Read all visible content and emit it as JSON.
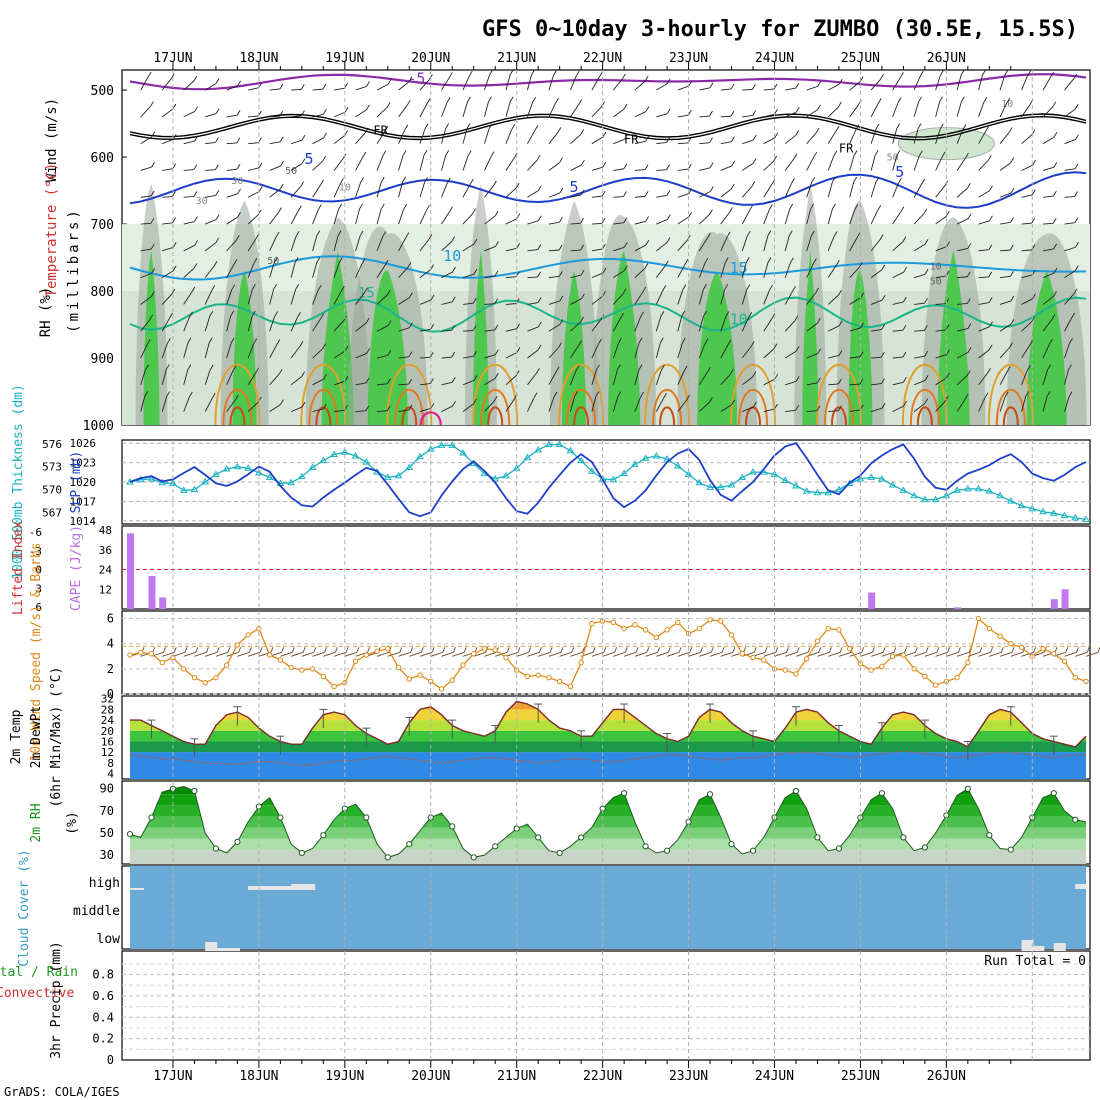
{
  "title": "GFS 0~10day 3-hourly for ZUMBO (30.5E, 15.5S)",
  "credit": "GrADS: COLA/IGES",
  "dates": [
    "17JUN",
    "18JUN",
    "19JUN",
    "20JUN",
    "21JUN",
    "22JUN",
    "23JUN",
    "24JUN",
    "25JUN",
    "26JUN"
  ],
  "colors": {
    "rh_green": "#2bc82b",
    "rh_grey": "#9aa59a",
    "rh_light": "#e3efe3",
    "slp": "#1c3ec8",
    "thickness": "#1ab2c0",
    "cape": "#c078ee",
    "lifted_ref": "#e02020",
    "wind_speed": "#e08a1a",
    "barbs": "#6a4a2a",
    "temp_line": "#7a2a2a",
    "dewpt": "#b05a4a",
    "cloud_bg": "#6aaad6",
    "cloud_patch": "#e6e6e6"
  },
  "panels": {
    "upper": {
      "ylabel_rh": "RH (%)",
      "ylabel_temp": "Temperature (°C)",
      "ylabel_wind": "Wind (m/s)",
      "ylabel_p": "(millibars)",
      "pressure_ticks": [
        "500",
        "600",
        "700",
        "800",
        "900",
        "1000"
      ],
      "contour_labels": [
        "-5",
        "FR",
        "FR",
        "FR",
        "5",
        "5",
        "5",
        "10",
        "10",
        "15",
        "15",
        "10",
        "50",
        "50",
        "50",
        "30",
        "30",
        "10",
        "10",
        "50"
      ]
    },
    "slp": {
      "ylabel_left": "1000-500mb Thickness (dm)",
      "ylabel_right": "SLP (mb)",
      "thickness_ticks": [
        "576",
        "573",
        "570",
        "567"
      ],
      "slp_ticks": [
        "1026",
        "1023",
        "1020",
        "1017",
        "1014"
      ]
    },
    "cape": {
      "ylabel_li": "Lifted Index",
      "ylabel_cape": "CAPE (J/kg)",
      "li_ticks": [
        "-6",
        "-3",
        "0",
        "3",
        "6"
      ],
      "cape_ticks": [
        "48",
        "36",
        "24",
        "12"
      ]
    },
    "wind": {
      "ylabel": "10m Wind Speed (m/s) & Barbs",
      "ticks": [
        "6",
        "4",
        "2",
        "0"
      ]
    },
    "temp": {
      "ylabel_a": "2m Temp",
      "ylabel_b": "2m DewPt",
      "ylabel_c": "(6hr Min/Max) (°C)",
      "ticks": [
        "32",
        "28",
        "24",
        "20",
        "16",
        "12",
        "8",
        "4"
      ]
    },
    "rh": {
      "ylabel_a": "2m RH",
      "ylabel_b": "(%)",
      "ticks": [
        "90",
        "70",
        "50",
        "30"
      ]
    },
    "cloud": {
      "ylabel": "Cloud Cover (%)",
      "levels": [
        "high",
        "middle",
        "low"
      ]
    },
    "precip": {
      "ylabel_a": "Total / Rain",
      "ylabel_b": "Convective",
      "ylabel_c": "3hr Precip (mm)",
      "run_total": "Run Total = 0",
      "ticks": [
        "0.8",
        "0.6",
        "0.4",
        "0.2",
        "0"
      ]
    }
  },
  "chart_data": [
    {
      "type": "line",
      "name": "Sea Level Pressure",
      "unit": "mb",
      "ylim": [
        1014,
        1026
      ],
      "x_start": "16JUN 12Z",
      "x_step_hours": 3,
      "values": [
        1020.0,
        1020.6,
        1020.9,
        1020.1,
        1020.4,
        1021.4,
        1022.3,
        1021.1,
        1019.8,
        1019.4,
        1020.1,
        1021.2,
        1022.4,
        1021.6,
        1019.4,
        1017.6,
        1016.4,
        1016.2,
        1017.6,
        1018.8,
        1019.9,
        1021.1,
        1022.2,
        1021.7,
        1019.6,
        1017.4,
        1015.3,
        1014.7,
        1015.3,
        1017.9,
        1020.1,
        1022.0,
        1023.2,
        1021.7,
        1019.9,
        1017.5,
        1015.5,
        1015.1,
        1016.8,
        1019.1,
        1021.1,
        1023.0,
        1024.3,
        1023.1,
        1020.4,
        1017.5,
        1016.1,
        1017.1,
        1018.7,
        1021.0,
        1023.1,
        1024.4,
        1025.1,
        1023.4,
        1020.3,
        1018.0,
        1017.1,
        1018.6,
        1020.0,
        1022.0,
        1024.1,
        1025.5,
        1026.0,
        1023.7,
        1021.1,
        1018.7,
        1018.1,
        1019.9,
        1021.0,
        1022.9,
        1024.1,
        1025.1,
        1025.8,
        1023.6,
        1020.8,
        1019.1,
        1018.8,
        1020.2,
        1021.3,
        1021.9,
        1022.6,
        1023.6,
        1024.3,
        1023.1,
        1021.3,
        1020.6,
        1020.2,
        1021.1,
        1022.3,
        1023.1
      ],
      "x": [
        0,
        3,
        6,
        9,
        12,
        15,
        18,
        21,
        24,
        27,
        30,
        33,
        36,
        39,
        42,
        45,
        48,
        51,
        54,
        57,
        60,
        63,
        66,
        69,
        72,
        75,
        78,
        81,
        84,
        87,
        90,
        93,
        96,
        99,
        102,
        105,
        108,
        111,
        114,
        117,
        120,
        123,
        126,
        129,
        132,
        135,
        138,
        141,
        144,
        147,
        150,
        153,
        156,
        159,
        162,
        165,
        168,
        171,
        174,
        177,
        180,
        183,
        186,
        189,
        192,
        195,
        198,
        201,
        204,
        207,
        210,
        213,
        216,
        219,
        222,
        225,
        228,
        231,
        234,
        237,
        240,
        243,
        246,
        249,
        252,
        255,
        258,
        261,
        264,
        267
      ]
    },
    {
      "type": "line",
      "name": "1000-500mb Thickness",
      "unit": "dm",
      "ylim": [
        566,
        576
      ],
      "x_start": "16JUN 12Z",
      "x_step_hours": 3,
      "values": [
        571.0,
        571.3,
        571.4,
        570.9,
        570.8,
        569.9,
        570.0,
        571.0,
        572.0,
        572.7,
        573.0,
        572.8,
        572.2,
        571.6,
        570.8,
        570.9,
        571.7,
        572.9,
        573.8,
        574.6,
        574.9,
        574.4,
        573.6,
        572.3,
        571.6,
        571.8,
        572.9,
        574.3,
        575.3,
        575.8,
        575.8,
        574.8,
        573.4,
        572.1,
        571.4,
        571.8,
        572.8,
        574.2,
        575.2,
        575.9,
        575.9,
        575.1,
        573.8,
        572.4,
        571.4,
        571.3,
        572.1,
        573.3,
        574.1,
        574.4,
        574.0,
        573.1,
        572.0,
        570.9,
        570.3,
        570.3,
        570.6,
        571.6,
        572.3,
        572.3,
        572.0,
        571.2,
        570.5,
        569.8,
        569.6,
        569.6,
        570.0,
        570.8,
        571.4,
        571.6,
        571.4,
        570.6,
        569.9,
        569.2,
        568.7,
        568.7,
        569.2,
        569.9,
        570.1,
        570.1,
        569.8,
        569.2,
        568.5,
        567.9,
        567.5,
        567.1,
        566.9,
        566.6,
        566.3,
        566.1
      ],
      "x": [
        0,
        3,
        6,
        9,
        12,
        15,
        18,
        21,
        24,
        27,
        30,
        33,
        36,
        39,
        42,
        45,
        48,
        51,
        54,
        57,
        60,
        63,
        66,
        69,
        72,
        75,
        78,
        81,
        84,
        87,
        90,
        93,
        96,
        99,
        102,
        105,
        108,
        111,
        114,
        117,
        120,
        123,
        126,
        129,
        132,
        135,
        138,
        141,
        144,
        147,
        150,
        153,
        156,
        159,
        162,
        165,
        168,
        171,
        174,
        177,
        180,
        183,
        186,
        189,
        192,
        195,
        198,
        201,
        204,
        207,
        210,
        213,
        216,
        219,
        222,
        225,
        228,
        231,
        234,
        237,
        240,
        243,
        246,
        249,
        252,
        255,
        258,
        261,
        264,
        267
      ]
    },
    {
      "type": "bar",
      "name": "CAPE",
      "unit": "J/kg",
      "ylim": [
        0,
        48
      ],
      "x_hours": [
        0,
        6,
        9,
        24,
        33,
        207,
        231,
        258,
        261
      ],
      "values": [
        46,
        20,
        7,
        0,
        0,
        10,
        1,
        6,
        12
      ]
    },
    {
      "type": "line",
      "name": "10m Wind Speed",
      "unit": "m/s",
      "ylim": [
        0,
        6.5
      ],
      "x_start": "16JUN 12Z",
      "x_step_hours": 3,
      "values": [
        3.1,
        3.3,
        3.2,
        2.5,
        2.9,
        2.0,
        1.3,
        0.9,
        1.3,
        2.3,
        3.9,
        4.7,
        5.2,
        3.1,
        2.7,
        2.1,
        1.9,
        2.0,
        1.4,
        0.6,
        0.9,
        2.6,
        3.1,
        3.4,
        3.6,
        2.1,
        1.2,
        1.5,
        1.0,
        0.4,
        1.1,
        2.3,
        3.2,
        3.6,
        3.5,
        2.9,
        1.9,
        1.4,
        1.5,
        1.3,
        1.0,
        0.6,
        2.5,
        5.6,
        5.8,
        5.7,
        5.2,
        5.5,
        5.1,
        4.5,
        5.1,
        5.7,
        4.8,
        5.2,
        5.9,
        5.8,
        4.7,
        3.2,
        2.9,
        2.7,
        2.0,
        1.9,
        1.6,
        2.8,
        4.2,
        5.2,
        5.1,
        3.6,
        2.4,
        1.9,
        2.2,
        3.0,
        3.1,
        2.0,
        1.4,
        0.7,
        1.0,
        1.3,
        2.5,
        6.0,
        5.2,
        4.6,
        4.0,
        3.7,
        3.0,
        3.6,
        3.2,
        2.6,
        1.3,
        1.0
      ],
      "x": [
        0,
        3,
        6,
        9,
        12,
        15,
        18,
        21,
        24,
        27,
        30,
        33,
        36,
        39,
        42,
        45,
        48,
        51,
        54,
        57,
        60,
        63,
        66,
        69,
        72,
        75,
        78,
        81,
        84,
        87,
        90,
        93,
        96,
        99,
        102,
        105,
        108,
        111,
        114,
        117,
        120,
        123,
        126,
        129,
        132,
        135,
        138,
        141,
        144,
        147,
        150,
        153,
        156,
        159,
        162,
        165,
        168,
        171,
        174,
        177,
        180,
        183,
        186,
        189,
        192,
        195,
        198,
        201,
        204,
        207,
        210,
        213,
        216,
        219,
        222,
        225,
        228,
        231,
        234,
        237,
        240,
        243,
        246,
        249,
        252,
        255,
        258,
        261,
        264,
        267
      ]
    },
    {
      "type": "area",
      "name": "2m Temperature",
      "unit": "°C",
      "ylim": [
        0,
        33
      ],
      "x_start": "16JUN 12Z",
      "x_step_hours": 3,
      "values": [
        24,
        24,
        22,
        20,
        18,
        16,
        15,
        15,
        22,
        26,
        27,
        25,
        21,
        18,
        16,
        15,
        15,
        21,
        26,
        27,
        26,
        22,
        19,
        17,
        15,
        16,
        23,
        28,
        29,
        26,
        22,
        20,
        19,
        18,
        20,
        27,
        31,
        30,
        28,
        24,
        21,
        20,
        18,
        18,
        23,
        28,
        28,
        25,
        22,
        19,
        17,
        16,
        18,
        25,
        28,
        27,
        23,
        20,
        18,
        17,
        16,
        21,
        27,
        28,
        27,
        23,
        20,
        18,
        16,
        15,
        21,
        26,
        27,
        26,
        22,
        19,
        17,
        16,
        14,
        20,
        26,
        28,
        27,
        23,
        19,
        17,
        16,
        15,
        14,
        18
      ],
      "x": [
        0,
        3,
        6,
        9,
        12,
        15,
        18,
        21,
        24,
        27,
        30,
        33,
        36,
        39,
        42,
        45,
        48,
        51,
        54,
        57,
        60,
        63,
        66,
        69,
        72,
        75,
        78,
        81,
        84,
        87,
        90,
        93,
        96,
        99,
        102,
        105,
        108,
        111,
        114,
        117,
        120,
        123,
        126,
        129,
        132,
        135,
        138,
        141,
        144,
        147,
        150,
        153,
        156,
        159,
        162,
        165,
        168,
        171,
        174,
        177,
        180,
        183,
        186,
        189,
        192,
        195,
        198,
        201,
        204,
        207,
        210,
        213,
        216,
        219,
        222,
        225,
        228,
        231,
        234,
        237,
        240,
        243,
        246,
        249,
        252,
        255,
        258,
        261,
        264,
        267
      ]
    },
    {
      "type": "line",
      "name": "2m Dew Point",
      "unit": "°C",
      "ylim": [
        0,
        33
      ],
      "values": [
        11,
        10.5,
        10,
        9.5,
        9.5,
        9,
        8.5,
        8,
        7.8,
        7.6,
        7.5,
        8,
        8.5,
        8.5,
        8,
        7.5,
        7,
        7.5,
        8,
        8.5,
        9,
        9,
        9.5,
        10,
        10.5,
        10,
        9.5,
        9,
        8.5,
        8,
        8.5,
        9,
        9.5,
        10,
        10,
        9.5,
        9,
        8.5,
        8,
        8.5,
        9,
        9.5,
        9.5,
        9,
        8.5,
        8.5,
        9,
        9.5,
        10,
        10.5,
        11,
        11,
        10.5,
        10,
        9.5,
        9,
        9.5,
        10,
        10,
        10.5,
        11,
        11.5,
        12,
        12,
        11.5,
        11,
        10.5,
        10,
        10.5,
        11,
        11.5,
        12,
        12.5,
        12,
        11.5,
        11,
        10.5,
        10,
        10.5,
        11,
        11.5,
        12,
        12,
        11.5,
        11,
        10.5,
        10,
        10.5,
        11,
        11
      ],
      "x_start": "16JUN 12Z",
      "x_step_hours": 3
    },
    {
      "type": "area",
      "name": "2m RH",
      "unit": "%",
      "ylim": [
        22,
        97
      ],
      "x_start": "16JUN 12Z",
      "x_step_hours": 3,
      "values": [
        49,
        46,
        64,
        87,
        90,
        92,
        88,
        50,
        36,
        32,
        42,
        60,
        74,
        82,
        64,
        40,
        32,
        36,
        48,
        62,
        72,
        76,
        64,
        40,
        28,
        31,
        40,
        52,
        64,
        68,
        56,
        36,
        28,
        30,
        38,
        46,
        54,
        58,
        46,
        34,
        32,
        38,
        46,
        55,
        72,
        82,
        86,
        60,
        38,
        32,
        34,
        44,
        60,
        80,
        85,
        64,
        40,
        31,
        34,
        46,
        64,
        82,
        88,
        72,
        46,
        34,
        36,
        48,
        64,
        80,
        86,
        72,
        46,
        34,
        37,
        50,
        66,
        84,
        90,
        72,
        48,
        36,
        35,
        46,
        64,
        82,
        86,
        70,
        62,
        60
      ],
      "x": [
        0,
        3,
        6,
        9,
        12,
        15,
        18,
        21,
        24,
        27,
        30,
        33,
        36,
        39,
        42,
        45,
        48,
        51,
        54,
        57,
        60,
        63,
        66,
        69,
        72,
        75,
        78,
        81,
        84,
        87,
        90,
        93,
        96,
        99,
        102,
        105,
        108,
        111,
        114,
        117,
        120,
        123,
        126,
        129,
        132,
        135,
        138,
        141,
        144,
        147,
        150,
        153,
        156,
        159,
        162,
        165,
        168,
        171,
        174,
        177,
        180,
        183,
        186,
        189,
        192,
        195,
        198,
        201,
        204,
        207,
        210,
        213,
        216,
        219,
        222,
        225,
        228,
        231,
        234,
        237,
        240,
        243,
        246,
        249,
        252,
        255,
        258,
        261,
        264,
        267
      ]
    },
    {
      "type": "bar",
      "name": "3hr Precip",
      "unit": "mm",
      "ylim": [
        0,
        1
      ],
      "values": [
        0
      ],
      "categories": [
        "Run Total"
      ]
    }
  ]
}
